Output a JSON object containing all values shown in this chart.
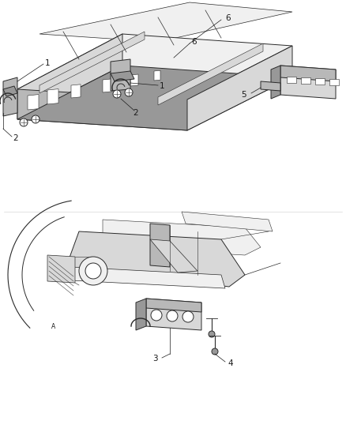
{
  "background_color": "#ffffff",
  "fig_width": 4.38,
  "fig_height": 5.33,
  "dpi": 100,
  "line_color": "#2a2a2a",
  "text_color": "#1a1a1a",
  "fill_light": "#f0f0f0",
  "fill_mid": "#d8d8d8",
  "fill_dark": "#b8b8b8",
  "fill_darker": "#989898",
  "label_fontsize": 7.5
}
